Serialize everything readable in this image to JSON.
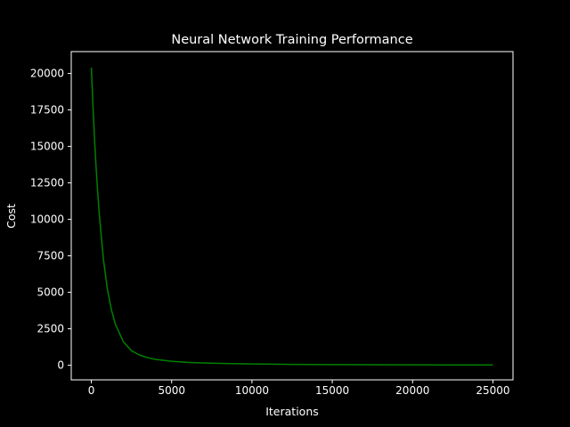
{
  "chart_data": {
    "type": "line",
    "title": "Neural Network Training Performance",
    "xlabel": "Iterations",
    "ylabel": "Cost",
    "xlim": [
      -1250,
      26250
    ],
    "ylim": [
      -1000,
      21500
    ],
    "xticks": [
      0,
      5000,
      10000,
      15000,
      20000,
      25000
    ],
    "yticks": [
      0,
      2500,
      5000,
      7500,
      10000,
      12500,
      15000,
      17500,
      20000
    ],
    "grid": false,
    "legend": "none",
    "series": [
      {
        "color": "#008000",
        "x": [
          0,
          100,
          200,
          300,
          400,
          500,
          750,
          1000,
          1250,
          1500,
          2000,
          2500,
          3000,
          3500,
          4000,
          5000,
          6000,
          7000,
          8000,
          10000,
          12500,
          15000,
          17500,
          20000,
          22500,
          25000
        ],
        "y": [
          20400,
          17800,
          15500,
          13500,
          11800,
          10300,
          7300,
          5200,
          3800,
          2800,
          1600,
          1000,
          700,
          520,
          400,
          270,
          200,
          160,
          130,
          90,
          60,
          45,
          35,
          30,
          25,
          20
        ]
      }
    ]
  },
  "colors": {
    "background": "#000000",
    "foreground": "#ffffff",
    "series": "#008000"
  }
}
